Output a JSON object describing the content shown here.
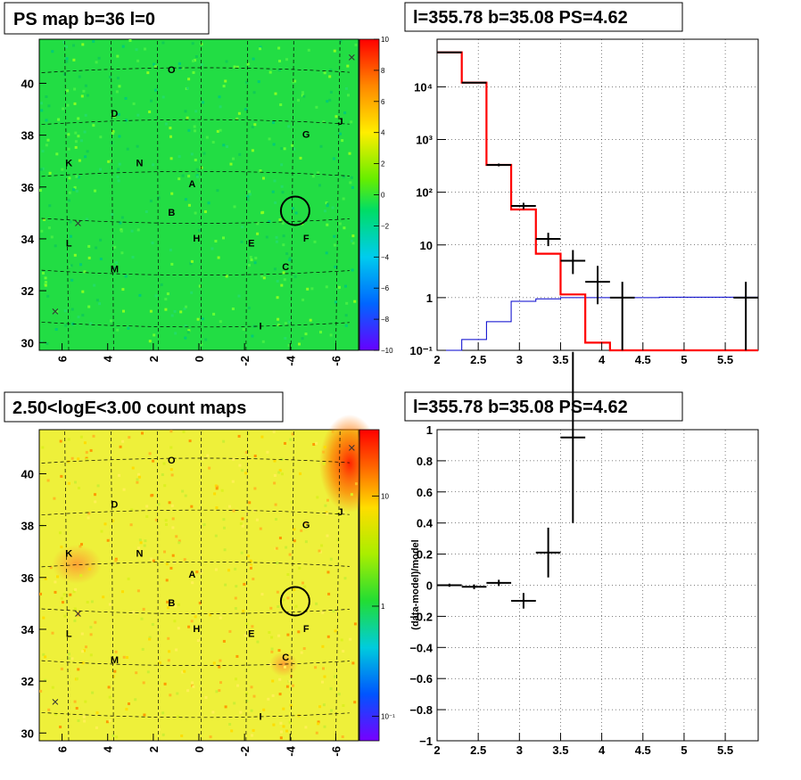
{
  "panels": {
    "ps_map": {
      "title": "PS map b=36 l=0"
    },
    "count_map": {
      "title": "2.50<logE<3.00 count maps"
    },
    "spectrum": {
      "title": "l=355.78 b=35.08 PS=4.62"
    },
    "residual": {
      "title": "l=355.78 b=35.08 PS=4.62"
    }
  },
  "map_axes": {
    "x_ticks": [
      "6",
      "4",
      "2",
      "0",
      "-2",
      "-4",
      "-6"
    ],
    "y_ticks": [
      "40",
      "38",
      "36",
      "34",
      "32",
      "30"
    ]
  },
  "ps_colorbar": {
    "ticks": [
      "10",
      "8",
      "6",
      "4",
      "2",
      "0",
      "−2",
      "−4",
      "−6",
      "−8",
      "−10"
    ]
  },
  "count_colorbar": {
    "ticks": [
      "10",
      "1",
      "10⁻¹"
    ]
  },
  "region_labels": [
    "O",
    "D",
    "J",
    "G",
    "K",
    "N",
    "A",
    "B",
    "H",
    "E",
    "F",
    "L",
    "M",
    "C",
    "I"
  ],
  "colors": {
    "ps_background": "#22dd44",
    "count_background": "#eef03a",
    "data": "#000000",
    "model": "#ff0000",
    "background_model": "#0000cc"
  },
  "chart_data": [
    {
      "type": "heatmap",
      "title": "PS map b=36 l=0",
      "xlim": [
        7,
        -7
      ],
      "ylim": [
        29.7,
        41.7
      ],
      "zlim": [
        -10,
        10
      ],
      "x_ticks": [
        6,
        4,
        2,
        0,
        -2,
        -4,
        -6
      ],
      "y_ticks": [
        30,
        32,
        34,
        36,
        38,
        40
      ],
      "regions": [
        {
          "label": "O",
          "l": 1.2,
          "b": 40.4
        },
        {
          "label": "D",
          "l": 3.7,
          "b": 38.7
        },
        {
          "label": "J",
          "l": -6.2,
          "b": 38.4
        },
        {
          "label": "G",
          "l": -4.7,
          "b": 37.9
        },
        {
          "label": "K",
          "l": 5.7,
          "b": 36.8
        },
        {
          "label": "N",
          "l": 2.6,
          "b": 36.8
        },
        {
          "label": "A",
          "l": 0.3,
          "b": 36.0
        },
        {
          "label": "B",
          "l": 1.2,
          "b": 34.9
        },
        {
          "label": "H",
          "l": 0.1,
          "b": 33.9
        },
        {
          "label": "E",
          "l": -2.3,
          "b": 33.7
        },
        {
          "label": "F",
          "l": -4.7,
          "b": 33.9
        },
        {
          "label": "L",
          "l": 5.7,
          "b": 33.7
        },
        {
          "label": "M",
          "l": 3.7,
          "b": 32.7
        },
        {
          "label": "C",
          "l": -3.8,
          "b": 32.8
        },
        {
          "label": "I",
          "l": -2.7,
          "b": 30.5
        }
      ],
      "markers_x": [
        {
          "l": 6.3,
          "b": 31.2
        },
        {
          "l": 5.3,
          "b": 34.6
        },
        {
          "l": -6.7,
          "b": 41.0
        }
      ],
      "circle": {
        "l": -4.22,
        "b": 35.08,
        "r": 0.55
      }
    },
    {
      "type": "heatmap",
      "title": "2.50<logE<3.00 count maps",
      "xlim": [
        7,
        -7
      ],
      "ylim": [
        29.7,
        41.7
      ],
      "zscale": "log",
      "zlim": [
        0.06,
        40
      ],
      "x_ticks": [
        6,
        4,
        2,
        0,
        -2,
        -4,
        -6
      ],
      "y_ticks": [
        30,
        32,
        34,
        36,
        38,
        40
      ]
    },
    {
      "type": "line",
      "title": "l=355.78 b=35.08 PS=4.62",
      "xlim": [
        2,
        5.9
      ],
      "ylim": [
        0.1,
        80000
      ],
      "yscale": "log",
      "grid": true,
      "x_ticks": [
        "2",
        "2.5",
        "3",
        "3.5",
        "4",
        "4.5",
        "5",
        "5.5"
      ],
      "y_ticks": [
        "10⁻¹",
        "1",
        "10",
        "10²",
        "10³",
        "10⁴"
      ],
      "bin_edges": [
        2.0,
        2.3,
        2.6,
        2.9,
        3.2,
        3.5,
        3.8,
        4.1,
        4.4,
        4.7,
        5.0,
        5.3,
        5.6,
        5.9
      ],
      "series": [
        {
          "values": [
            45000,
            12000,
            330,
            47,
            6.8,
            1.15,
            0.14,
            0.1,
            0.1,
            0.1,
            0.1,
            0.1,
            0.1
          ]
        },
        {
          "values": [
            0.1,
            0.16,
            0.35,
            0.85,
            0.95,
            1.0,
            1.0,
            1.0,
            1.0,
            1.02,
            1.02,
            1.02,
            1.02
          ]
        }
      ],
      "data_points": [
        {
          "x": 2.15,
          "y": 45000,
          "ylo": 44000,
          "yhi": 46000
        },
        {
          "x": 2.45,
          "y": 12000,
          "ylo": 11700,
          "yhi": 12300
        },
        {
          "x": 2.75,
          "y": 330,
          "ylo": 310,
          "yhi": 350
        },
        {
          "x": 3.05,
          "y": 55,
          "ylo": 48,
          "yhi": 63
        },
        {
          "x": 3.35,
          "y": 13,
          "ylo": 9.5,
          "yhi": 17
        },
        {
          "x": 3.65,
          "y": 5,
          "ylo": 2.8,
          "yhi": 8
        },
        {
          "x": 3.95,
          "y": 2,
          "ylo": 0.75,
          "yhi": 4
        },
        {
          "x": 4.25,
          "y": 1,
          "ylo": 0.1,
          "yhi": 2
        },
        {
          "x": 5.75,
          "y": 1,
          "ylo": 0.1,
          "yhi": 2
        }
      ]
    },
    {
      "type": "scatter",
      "title": "l=355.78 b=35.08 PS=4.62",
      "ylabel": "(data-model)/model",
      "xlim": [
        2,
        5.9
      ],
      "ylim": [
        -1,
        1
      ],
      "grid": true,
      "x_ticks": [
        "2",
        "2.5",
        "3",
        "3.5",
        "4",
        "4.5",
        "5",
        "5.5"
      ],
      "y_ticks": [
        "−1",
        "−0.8",
        "−0.6",
        "−0.4",
        "−0.2",
        "0",
        "0.2",
        "0.4",
        "0.6",
        "0.8",
        "1"
      ],
      "points": [
        {
          "x": 2.15,
          "y": 0.0,
          "err": 0.01
        },
        {
          "x": 2.45,
          "y": -0.01,
          "err": 0.015
        },
        {
          "x": 2.75,
          "y": 0.015,
          "err": 0.02
        },
        {
          "x": 3.05,
          "y": -0.1,
          "err": 0.05
        },
        {
          "x": 3.35,
          "y": 0.21,
          "err": 0.16
        },
        {
          "x": 3.65,
          "y": 0.95,
          "err": 0.55
        }
      ]
    }
  ]
}
